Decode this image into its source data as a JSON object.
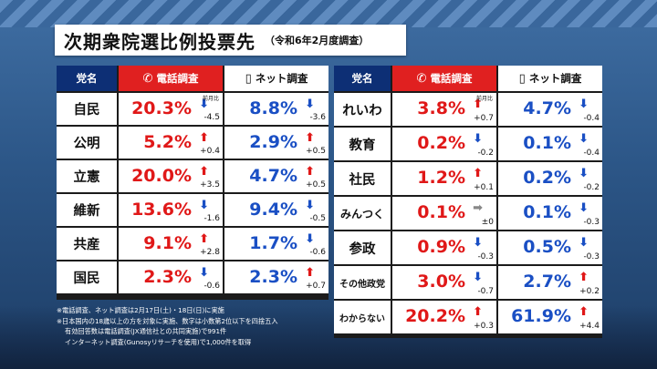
{
  "title": {
    "main": "次期衆院選比例投票先",
    "sub": "（令和6年2月度調査）"
  },
  "headers": {
    "party": "党名",
    "phone": "電話調査",
    "net": "ネット調査"
  },
  "icons": {
    "phone": "phone-icon",
    "net": "smartphone-icon"
  },
  "prev_label": "前月比",
  "colors": {
    "red": "#e01818",
    "blue": "#1a4fc4",
    "header_navy": "#0d2f75",
    "header_red": "#e02020"
  },
  "left_rows": [
    {
      "party": "自民",
      "phone": "20.3%",
      "phone_dir": "down",
      "phone_delta": "-4.5",
      "net": "8.8%",
      "net_dir": "down",
      "net_delta": "-3.6"
    },
    {
      "party": "公明",
      "phone": "5.2%",
      "phone_dir": "up",
      "phone_delta": "+0.4",
      "net": "2.9%",
      "net_dir": "up",
      "net_delta": "+0.5"
    },
    {
      "party": "立憲",
      "phone": "20.0%",
      "phone_dir": "up",
      "phone_delta": "+3.5",
      "net": "4.7%",
      "net_dir": "up",
      "net_delta": "+0.5"
    },
    {
      "party": "維新",
      "phone": "13.6%",
      "phone_dir": "down",
      "phone_delta": "-1.6",
      "net": "9.4%",
      "net_dir": "down",
      "net_delta": "-0.5"
    },
    {
      "party": "共産",
      "phone": "9.1%",
      "phone_dir": "up",
      "phone_delta": "+2.8",
      "net": "1.7%",
      "net_dir": "down",
      "net_delta": "-0.6"
    },
    {
      "party": "国民",
      "phone": "2.3%",
      "phone_dir": "down",
      "phone_delta": "-0.6",
      "net": "2.3%",
      "net_dir": "up",
      "net_delta": "+0.7"
    }
  ],
  "right_rows": [
    {
      "party": "れいわ",
      "phone": "3.8%",
      "phone_dir": "up",
      "phone_delta": "+0.7",
      "net": "4.7%",
      "net_dir": "down",
      "net_delta": "-0.4"
    },
    {
      "party": "教育",
      "phone": "0.2%",
      "phone_dir": "down",
      "phone_delta": "-0.2",
      "net": "0.1%",
      "net_dir": "down",
      "net_delta": "-0.4"
    },
    {
      "party": "社民",
      "phone": "1.2%",
      "phone_dir": "up",
      "phone_delta": "+0.1",
      "net": "0.2%",
      "net_dir": "down",
      "net_delta": "-0.2"
    },
    {
      "party": "みんつく",
      "phone": "0.1%",
      "phone_dir": "flat",
      "phone_delta": "±0",
      "net": "0.1%",
      "net_dir": "down",
      "net_delta": "-0.3"
    },
    {
      "party": "参政",
      "phone": "0.9%",
      "phone_dir": "down",
      "phone_delta": "-0.3",
      "net": "0.5%",
      "net_dir": "down",
      "net_delta": "-0.3"
    },
    {
      "party": "その他政党",
      "phone": "3.0%",
      "phone_dir": "down",
      "phone_delta": "-0.7",
      "net": "2.7%",
      "net_dir": "up",
      "net_delta": "+0.2"
    },
    {
      "party": "わからない",
      "phone": "20.2%",
      "phone_dir": "up",
      "phone_delta": "+0.3",
      "net": "61.9%",
      "net_dir": "up",
      "net_delta": "+4.4"
    }
  ],
  "notes": [
    "※電話調査、ネット調査は2月17日(土)・18日(日)に実施",
    "※日本国内の18歳以上の方を対象に実施、数字は小数第2位以下を四捨五入",
    "有効回答数は電話調査(JX通信社との共同実施)で991件",
    "インターネット調査(Gunosyリサーチを使用)で1,000件を取得"
  ]
}
